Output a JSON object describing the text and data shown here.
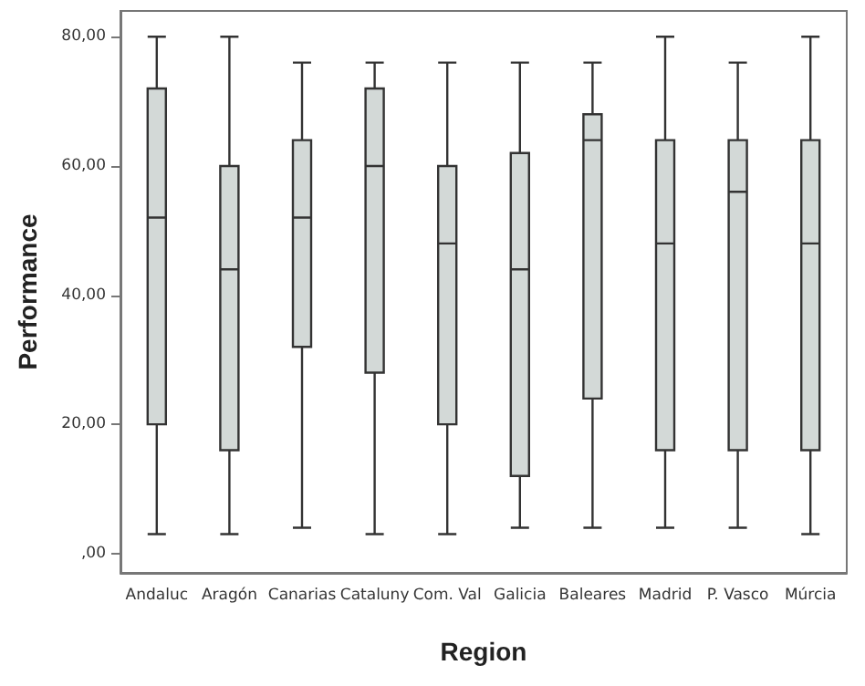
{
  "chart_data": {
    "type": "box",
    "xlabel": "Region",
    "ylabel": "Performance",
    "categories": [
      "Andaluc",
      "Aragón",
      "Canarias",
      "Cataluny",
      "Com. Val",
      "Galicia",
      "Baleares",
      "Madrid",
      "P. Vasco",
      "Múrcia"
    ],
    "boxes": [
      {
        "low": 3,
        "q1": 20,
        "median": 52,
        "q3": 72,
        "high": 80
      },
      {
        "low": 3,
        "q1": 16,
        "median": 44,
        "q3": 60,
        "high": 80
      },
      {
        "low": 4,
        "q1": 32,
        "median": 52,
        "q3": 64,
        "high": 76
      },
      {
        "low": 3,
        "q1": 28,
        "median": 60,
        "q3": 72,
        "high": 76
      },
      {
        "low": 3,
        "q1": 20,
        "median": 48,
        "q3": 60,
        "high": 76
      },
      {
        "low": 4,
        "q1": 12,
        "median": 44,
        "q3": 62,
        "high": 76
      },
      {
        "low": 4,
        "q1": 24,
        "median": 64,
        "q3": 68,
        "high": 76
      },
      {
        "low": 4,
        "q1": 16,
        "median": 48,
        "q3": 64,
        "high": 80
      },
      {
        "low": 4,
        "q1": 16,
        "median": 56,
        "q3": 64,
        "high": 76
      },
      {
        "low": 3,
        "q1": 16,
        "median": 48,
        "q3": 64,
        "high": 80
      }
    ],
    "color": "#d3d9d7",
    "ylim": [
      -3,
      84
    ],
    "yticks": [
      {
        "value": 0,
        "label": ",00"
      },
      {
        "value": 20,
        "label": "20,00"
      },
      {
        "value": 40,
        "label": "40,00"
      },
      {
        "value": 60,
        "label": "60,00"
      },
      {
        "value": 80,
        "label": "80,00"
      }
    ],
    "grid": false
  }
}
